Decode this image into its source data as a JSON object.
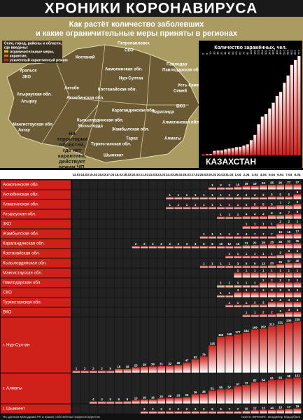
{
  "header": {
    "title": "ХРОНИКИ КОРОНАВИРУСА",
    "subtitle": [
      "Как растёт количество заболевших",
      "и какие ограничительные меры приняты в регионах"
    ]
  },
  "map": {
    "legend": [
      "Село, город, районы и области,",
      "где введены:",
      "ограничительные меры,",
      "карантин,",
      "усиленный карантинный режим"
    ],
    "note": [
      "На",
      "территории",
      "областей,",
      "где нет",
      "карантина,",
      "действует",
      "режим ЧП."
    ],
    "labels": [
      "Петропавловск",
      "СКО",
      "Костанай",
      "Акмолинская обл.",
      "Нур-Султан",
      "Павлодарская обл.",
      "Павлодар",
      "Уральск",
      "ЗКО",
      "Актобе",
      "Актюбинская обл.",
      "Костанайская обл.",
      "Атырауская обл.",
      "Атырау",
      "Карагандинская обл.",
      "Караганда",
      "Усть-Каменогорск",
      "Семей",
      "ВКО",
      "Мангистауская обл.",
      "Актау",
      "Кызылординская обл.",
      "Кызылорда",
      "Жамбылская обл.",
      "Тараз",
      "Туркестанская обл.",
      "Шымкент",
      "Алматинская обл.",
      "Алматы"
    ]
  },
  "chart_data": {
    "type": "bar",
    "title": "Количество заражённых, чел.",
    "label": "КАЗАХСТАН",
    "color": "#d0201a",
    "values": [
      6,
      9,
      10,
      33,
      36,
      37,
      44,
      49,
      53,
      60,
      62,
      72,
      81,
      111,
      150,
      228,
      284,
      302,
      343,
      386,
      435,
      464,
      531,
      584,
      662,
      697,
      727
    ]
  },
  "table": {
    "dates": [
      "13.03",
      "14.03",
      "15.03",
      "16.03",
      "17.03",
      "18.03",
      "19.03",
      "20.03",
      "21.03",
      "22.03",
      "23.03",
      "24.03",
      "25.03",
      "26.03",
      "27.03",
      "28.03",
      "29.03",
      "30.03",
      "31.03",
      "1.04",
      "2.04",
      "3.04",
      "4.04",
      "5.04",
      "6.04",
      "7.04",
      "8.04"
    ],
    "rows": [
      {
        "name": "Акмолинская обл.",
        "values": [
          null,
          null,
          null,
          null,
          null,
          null,
          null,
          null,
          null,
          null,
          null,
          null,
          null,
          null,
          null,
          null,
          1,
          2,
          3,
          15,
          19,
          19,
          24,
          25,
          26,
          27,
          27
        ]
      },
      {
        "name": "Актюбинская обл.",
        "values": [
          null,
          null,
          null,
          null,
          null,
          null,
          null,
          null,
          null,
          null,
          null,
          1,
          1,
          1,
          1,
          1,
          1,
          1,
          1,
          2,
          3,
          3,
          3,
          5,
          5,
          5,
          9
        ]
      },
      {
        "name": "Алматинская обл.",
        "values": [
          null,
          null,
          null,
          null,
          null,
          null,
          null,
          null,
          null,
          null,
          null,
          1,
          1,
          1,
          1,
          1,
          1,
          1,
          1,
          1,
          3,
          5,
          5,
          5,
          7,
          7,
          9
        ]
      },
      {
        "name": "Атырауская обл.",
        "values": [
          null,
          null,
          null,
          null,
          null,
          null,
          null,
          null,
          null,
          null,
          null,
          null,
          null,
          null,
          null,
          null,
          null,
          1,
          1,
          1,
          4,
          4,
          4,
          6,
          6,
          7,
          8
        ]
      },
      {
        "name": "ЗКО",
        "values": [
          null,
          null,
          null,
          null,
          null,
          null,
          null,
          null,
          null,
          null,
          null,
          null,
          null,
          null,
          null,
          null,
          null,
          null,
          null,
          null,
          1,
          1,
          1,
          1,
          2,
          2,
          2
        ]
      },
      {
        "name": "Жамбылская обл.",
        "values": [
          null,
          null,
          null,
          null,
          null,
          null,
          null,
          null,
          null,
          null,
          null,
          null,
          null,
          null,
          null,
          1,
          1,
          1,
          1,
          2,
          4,
          7,
          7,
          7,
          15,
          15,
          17
        ]
      },
      {
        "name": "Карагандинская обл.",
        "values": [
          null,
          null,
          null,
          null,
          null,
          null,
          null,
          2,
          2,
          2,
          2,
          2,
          2,
          3,
          4,
          5,
          8,
          10,
          12,
          15,
          21,
          22,
          26,
          28,
          30,
          33,
          35
        ]
      },
      {
        "name": "Костанайская обл.",
        "values": [
          null,
          null,
          null,
          null,
          null,
          null,
          null,
          null,
          null,
          null,
          null,
          null,
          null,
          null,
          null,
          null,
          null,
          null,
          1,
          1,
          1,
          1,
          1,
          1,
          2,
          3,
          3
        ]
      },
      {
        "name": "Кызылординская обл.",
        "values": [
          null,
          null,
          null,
          null,
          null,
          null,
          null,
          null,
          null,
          null,
          null,
          null,
          null,
          null,
          null,
          1,
          1,
          1,
          1,
          3,
          5,
          9,
          13,
          20,
          30,
          37,
          40
        ]
      },
      {
        "name": "Мангистауская обл.",
        "values": [
          null,
          null,
          null,
          null,
          null,
          null,
          null,
          null,
          null,
          null,
          null,
          null,
          null,
          null,
          null,
          null,
          null,
          null,
          null,
          1,
          1,
          1,
          1,
          1,
          1,
          1,
          1
        ]
      },
      {
        "name": "Павлодарская обл.",
        "values": [
          null,
          null,
          null,
          null,
          null,
          null,
          null,
          null,
          null,
          null,
          null,
          null,
          null,
          null,
          null,
          null,
          null,
          1,
          1,
          1,
          1,
          1,
          2,
          2,
          2,
          2,
          2
        ]
      },
      {
        "name": "СКО",
        "values": [
          null,
          null,
          null,
          null,
          null,
          null,
          null,
          null,
          null,
          null,
          null,
          null,
          null,
          null,
          null,
          null,
          null,
          1,
          1,
          3,
          3,
          3,
          3,
          3,
          3,
          3,
          3
        ]
      },
      {
        "name": "Туркестанская обл.",
        "values": [
          null,
          null,
          null,
          null,
          null,
          null,
          null,
          null,
          null,
          null,
          null,
          null,
          null,
          null,
          null,
          null,
          null,
          null,
          1,
          1,
          1,
          2,
          2,
          4,
          4,
          4,
          4
        ]
      },
      {
        "name": "ВКО",
        "values": [
          null,
          null,
          null,
          null,
          null,
          null,
          null,
          null,
          null,
          null,
          null,
          null,
          null,
          null,
          null,
          null,
          null,
          null,
          null,
          null,
          1,
          1,
          2,
          2,
          3,
          4,
          4
        ]
      },
      {
        "name": "г. Нур-Султан",
        "values": [
          1,
          2,
          2,
          2,
          5,
          18,
          18,
          25,
          28,
          29,
          31,
          32,
          36,
          47,
          62,
          75,
          125,
          165,
          168,
          177,
          184,
          199,
          202,
          213,
          221,
          230,
          235
        ]
      },
      {
        "name": "г. Алматы",
        "values": [
          null,
          null,
          4,
          4,
          5,
          6,
          9,
          13,
          16,
          16,
          20,
          22,
          23,
          25,
          36,
          38,
          51,
          55,
          57,
          67,
          72,
          82,
          84,
          91,
          93,
          98,
          101
        ]
      },
      {
        "name": "г. Шымкент",
        "values": [
          null,
          null,
          null,
          null,
          null,
          null,
          null,
          null,
          2,
          2,
          2,
          2,
          2,
          2,
          2,
          2,
          5,
          5,
          7,
          7,
          10,
          12,
          13,
          14,
          15,
          17,
          19
        ]
      }
    ]
  },
  "footer": {
    "source": "По данным Минздрава РК и наших собственных корреспондентов",
    "credit": "Газета «ВРЕМЯ». Владимир Кадырбаев"
  }
}
